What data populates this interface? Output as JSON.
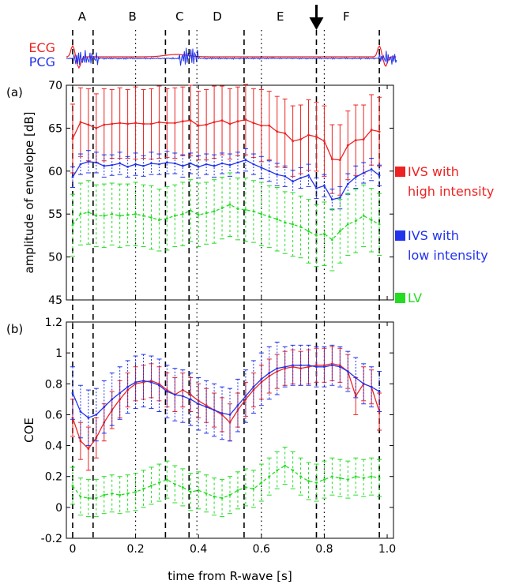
{
  "chart_data": {
    "type": "line",
    "x_label": "time from R-wave [s]",
    "x_ticks": [
      "0",
      "0.2",
      "0.4",
      "0.6",
      "0.8",
      "1.0"
    ],
    "x_range": [
      -0.02,
      1.02
    ],
    "phase_labels": [
      "A",
      "B",
      "C",
      "D",
      "E",
      "F"
    ],
    "phase_positions": [
      0.03,
      0.19,
      0.34,
      0.46,
      0.66,
      0.87
    ],
    "dashed_boundaries": [
      0.0,
      0.065,
      0.295,
      0.37,
      0.545,
      0.775,
      0.975
    ],
    "dotted_boundaries": [
      0.2,
      0.395,
      0.6,
      0.8
    ],
    "arrow_at": 0.775,
    "trace_labels": {
      "ecg": "ECG",
      "pcg": "PCG"
    },
    "legend": [
      {
        "text": "IVS with\nhigh intensity",
        "line1": "IVS with",
        "line2": "high intensity",
        "color": "#ee2222"
      },
      {
        "text": "IVS with\nlow intensity",
        "line1": "IVS with",
        "line2": "low intensity",
        "color": "#2233ee"
      },
      {
        "text": "LV",
        "line1": "LV",
        "line2": "",
        "color": "#22dd22"
      }
    ],
    "panels": [
      {
        "label": "(a)",
        "y_label": "amplitude of envelope [dB]",
        "ylim": [
          45,
          70
        ],
        "y_ticks": [
          "45",
          "50",
          "55",
          "60",
          "65",
          "70"
        ],
        "x": [
          0,
          0.025,
          0.05,
          0.075,
          0.1,
          0.125,
          0.15,
          0.175,
          0.2,
          0.225,
          0.25,
          0.275,
          0.3,
          0.325,
          0.35,
          0.375,
          0.4,
          0.425,
          0.45,
          0.475,
          0.5,
          0.525,
          0.55,
          0.575,
          0.6,
          0.625,
          0.65,
          0.675,
          0.7,
          0.725,
          0.75,
          0.775,
          0.8,
          0.825,
          0.85,
          0.875,
          0.9,
          0.925,
          0.95,
          0.975
        ],
        "series": [
          {
            "name": "IVS with high intensity",
            "color": "#ee2222",
            "style": "solid",
            "values": [
              63.8,
              65.7,
              65.4,
              65.0,
              65.4,
              65.5,
              65.6,
              65.5,
              65.6,
              65.5,
              65.5,
              65.7,
              65.6,
              65.6,
              65.8,
              65.9,
              65.3,
              65.4,
              65.7,
              65.9,
              65.5,
              65.8,
              66.0,
              65.6,
              65.3,
              65.3,
              64.6,
              64.4,
              63.5,
              63.7,
              64.2,
              64.0,
              63.5,
              61.4,
              61.3,
              63.0,
              63.6,
              63.7,
              64.8,
              64.6
            ],
            "err": [
              4.0,
              4.0,
              4.2,
              4.0,
              4.2,
              4.0,
              4.1,
              4.0,
              4.2,
              4.0,
              4.1,
              4.2,
              4.0,
              4.1,
              4.0,
              4.1,
              4.0,
              4.1,
              4.2,
              4.0,
              4.1,
              4.0,
              4.1,
              4.0,
              4.2,
              4.0,
              4.1,
              4.0,
              4.1,
              4.0,
              4.1,
              4.0,
              4.1,
              4.0,
              4.1,
              4.0,
              4.1,
              4.0,
              4.1,
              4.0
            ]
          },
          {
            "name": "IVS with low intensity",
            "color": "#2233ee",
            "style": "solid",
            "values": [
              59.3,
              60.8,
              61.1,
              61.0,
              60.6,
              60.7,
              60.9,
              60.5,
              60.8,
              60.6,
              60.9,
              60.8,
              61.0,
              60.9,
              60.6,
              60.9,
              60.5,
              60.8,
              60.6,
              60.9,
              60.7,
              61.0,
              61.3,
              60.8,
              60.4,
              60.0,
              59.6,
              59.4,
              58.8,
              59.2,
              59.5,
              58.0,
              58.3,
              56.7,
              56.9,
              58.5,
              59.3,
              59.8,
              60.2,
              59.5
            ],
            "err": [
              1.2,
              1.2,
              1.3,
              1.2,
              1.3,
              1.2,
              1.3,
              1.2,
              1.3,
              1.2,
              1.3,
              1.2,
              1.3,
              1.2,
              1.3,
              1.2,
              1.3,
              1.2,
              1.3,
              1.2,
              1.3,
              1.2,
              1.3,
              1.2,
              1.3,
              1.2,
              1.3,
              1.2,
              1.3,
              1.2,
              1.3,
              1.2,
              1.3,
              1.2,
              1.3,
              1.2,
              1.3,
              1.2,
              1.3,
              1.2
            ]
          },
          {
            "name": "LV",
            "color": "#22dd22",
            "style": "dashed",
            "values": [
              53.7,
              55.0,
              55.2,
              54.8,
              54.8,
              55.0,
              54.8,
              54.9,
              55.0,
              54.8,
              54.6,
              54.3,
              54.5,
              54.8,
              55.0,
              55.4,
              54.9,
              55.1,
              55.3,
              55.7,
              56.1,
              55.6,
              55.5,
              55.3,
              55.0,
              54.7,
              54.4,
              54.0,
              53.8,
              53.5,
              53.0,
              52.5,
              52.7,
              52.0,
              53.0,
              53.8,
              54.2,
              54.8,
              54.3,
              53.8
            ],
            "err": [
              3.6,
              3.6,
              3.7,
              3.6,
              3.7,
              3.6,
              3.7,
              3.6,
              3.7,
              3.6,
              3.7,
              3.6,
              3.7,
              3.6,
              3.7,
              3.6,
              3.7,
              3.6,
              3.7,
              3.6,
              3.7,
              3.6,
              3.7,
              3.6,
              3.7,
              3.6,
              3.7,
              3.6,
              3.7,
              3.6,
              3.7,
              3.6,
              3.7,
              3.6,
              3.7,
              3.6,
              3.7,
              3.6,
              3.7,
              3.6
            ]
          }
        ]
      },
      {
        "label": "(b)",
        "y_label": "COE",
        "ylim": [
          -0.2,
          1.2
        ],
        "y_ticks": [
          "-0.2",
          "0",
          "0.2",
          "0.4",
          "0.6",
          "0.8",
          "1",
          "1.2"
        ],
        "x": [
          0,
          0.025,
          0.05,
          0.075,
          0.1,
          0.125,
          0.15,
          0.175,
          0.2,
          0.225,
          0.25,
          0.275,
          0.3,
          0.325,
          0.35,
          0.375,
          0.4,
          0.425,
          0.45,
          0.475,
          0.5,
          0.525,
          0.55,
          0.575,
          0.6,
          0.625,
          0.65,
          0.675,
          0.7,
          0.725,
          0.75,
          0.775,
          0.8,
          0.825,
          0.85,
          0.875,
          0.9,
          0.925,
          0.95,
          0.975
        ],
        "series": [
          {
            "name": "IVS with high intensity",
            "color": "#ee2222",
            "style": "solid",
            "values": [
              0.58,
              0.43,
              0.38,
              0.45,
              0.55,
              0.63,
              0.7,
              0.76,
              0.8,
              0.81,
              0.82,
              0.8,
              0.76,
              0.73,
              0.76,
              0.73,
              0.69,
              0.66,
              0.63,
              0.6,
              0.55,
              0.63,
              0.7,
              0.76,
              0.81,
              0.85,
              0.88,
              0.9,
              0.91,
              0.9,
              0.91,
              0.92,
              0.92,
              0.93,
              0.92,
              0.88,
              0.72,
              0.8,
              0.78,
              0.62
            ],
            "err": [
              0.12,
              0.12,
              0.14,
              0.13,
              0.12,
              0.12,
              0.12,
              0.11,
              0.11,
              0.11,
              0.11,
              0.11,
              0.11,
              0.11,
              0.11,
              0.11,
              0.11,
              0.11,
              0.11,
              0.11,
              0.12,
              0.11,
              0.11,
              0.11,
              0.11,
              0.11,
              0.11,
              0.11,
              0.11,
              0.11,
              0.11,
              0.11,
              0.11,
              0.11,
              0.11,
              0.11,
              0.12,
              0.11,
              0.11,
              0.12
            ]
          },
          {
            "name": "IVS with low intensity",
            "color": "#2233ee",
            "style": "solid",
            "values": [
              0.74,
              0.62,
              0.58,
              0.6,
              0.65,
              0.7,
              0.74,
              0.78,
              0.81,
              0.82,
              0.81,
              0.79,
              0.75,
              0.73,
              0.72,
              0.7,
              0.67,
              0.65,
              0.63,
              0.61,
              0.6,
              0.66,
              0.72,
              0.78,
              0.83,
              0.87,
              0.9,
              0.91,
              0.92,
              0.92,
              0.92,
              0.91,
              0.91,
              0.92,
              0.91,
              0.88,
              0.84,
              0.8,
              0.78,
              0.75
            ],
            "err": [
              0.17,
              0.17,
              0.18,
              0.17,
              0.17,
              0.17,
              0.17,
              0.17,
              0.17,
              0.17,
              0.17,
              0.17,
              0.17,
              0.17,
              0.17,
              0.17,
              0.17,
              0.17,
              0.17,
              0.17,
              0.17,
              0.17,
              0.17,
              0.17,
              0.17,
              0.17,
              0.17,
              0.13,
              0.13,
              0.13,
              0.13,
              0.13,
              0.13,
              0.13,
              0.13,
              0.13,
              0.13,
              0.13,
              0.13,
              0.13
            ]
          },
          {
            "name": "LV",
            "color": "#22dd22",
            "style": "dashed",
            "values": [
              0.14,
              0.07,
              0.06,
              0.06,
              0.08,
              0.09,
              0.08,
              0.09,
              0.1,
              0.12,
              0.14,
              0.16,
              0.18,
              0.15,
              0.13,
              0.1,
              0.11,
              0.09,
              0.07,
              0.06,
              0.08,
              0.11,
              0.13,
              0.12,
              0.16,
              0.2,
              0.24,
              0.27,
              0.24,
              0.2,
              0.17,
              0.16,
              0.18,
              0.2,
              0.19,
              0.18,
              0.2,
              0.19,
              0.2,
              0.19
            ],
            "err": [
              0.12,
              0.12,
              0.12,
              0.12,
              0.12,
              0.12,
              0.12,
              0.12,
              0.12,
              0.12,
              0.12,
              0.12,
              0.12,
              0.12,
              0.12,
              0.12,
              0.12,
              0.12,
              0.12,
              0.12,
              0.12,
              0.12,
              0.12,
              0.12,
              0.12,
              0.12,
              0.12,
              0.12,
              0.12,
              0.12,
              0.12,
              0.12,
              0.12,
              0.12,
              0.12,
              0.12,
              0.12,
              0.12,
              0.12,
              0.12
            ]
          }
        ]
      }
    ]
  }
}
